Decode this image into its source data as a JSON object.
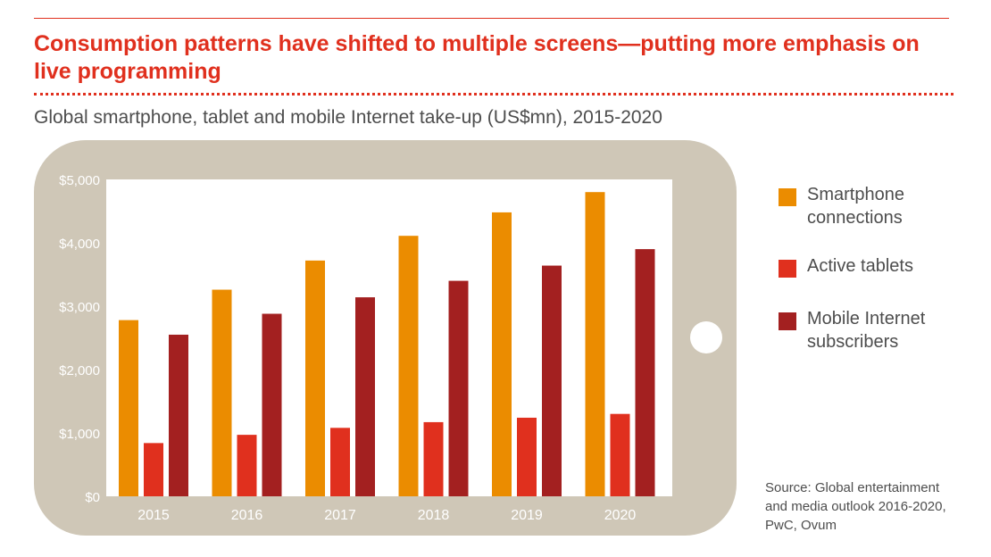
{
  "header": {
    "title": "Consumption patterns have shifted to multiple screens—putting more emphasis on live programming",
    "subtitle": "Global smartphone, tablet and mobile Internet take-up (US$mn), 2015-2020"
  },
  "colors": {
    "accent": "#e0301e",
    "phone_frame": "#cfc7b7",
    "smartphone": "#eb8c00",
    "tablets": "#e0301e",
    "mobile_internet": "#a32020"
  },
  "chart_data": {
    "type": "bar",
    "title": "Global smartphone, tablet and mobile Internet take-up (US$mn), 2015-2020",
    "xlabel": "",
    "ylabel": "",
    "ylim": [
      0,
      5000
    ],
    "yticks": [
      0,
      1000,
      2000,
      3000,
      4000,
      5000
    ],
    "ytick_labels": [
      "$0",
      "$1,000",
      "$2,000",
      "$3,000",
      "$4,000",
      "$5,000"
    ],
    "categories": [
      "2015",
      "2016",
      "2017",
      "2018",
      "2019",
      "2020"
    ],
    "series": [
      {
        "name": "Smartphone connections",
        "legend_label": "Smartphone\nconnections",
        "color": "#eb8c00",
        "values": [
          2780,
          3260,
          3720,
          4110,
          4480,
          4800
        ]
      },
      {
        "name": "Active tablets",
        "legend_label": "Active tablets",
        "color": "#e0301e",
        "values": [
          840,
          970,
          1080,
          1170,
          1240,
          1300
        ]
      },
      {
        "name": "Mobile Internet subscribers",
        "legend_label": "Mobile Internet\nsubscribers",
        "color": "#a32020",
        "values": [
          2550,
          2880,
          3140,
          3400,
          3640,
          3900
        ]
      }
    ],
    "grid": false,
    "legend_position": "right"
  },
  "footer": {
    "source": "Source: Global entertainment\nand media outlook 2016-2020,\nPwC, Ovum"
  }
}
